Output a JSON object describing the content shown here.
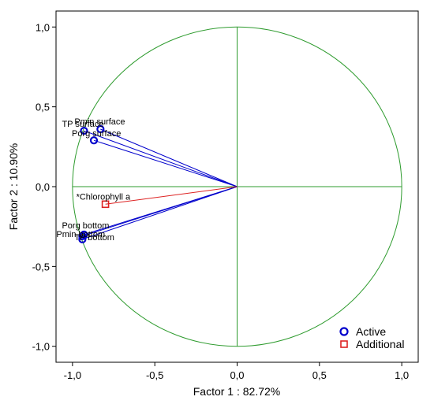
{
  "chart_data": {
    "type": "scatter",
    "title": "",
    "xlabel": "Factor 1 : 82.72%",
    "ylabel": "Factor 2 : 10.90%",
    "xlim": [
      -1.1,
      1.1
    ],
    "ylim": [
      -1.1,
      1.1
    ],
    "xticks": [
      "-1,0",
      "-0,5",
      "0,0",
      "0,5",
      "1,0"
    ],
    "yticks": [
      "1,0",
      "0,5",
      "0,0",
      "-0,5",
      "-1,0"
    ],
    "xtick_values": [
      -1.0,
      -0.5,
      0.0,
      0.5,
      1.0
    ],
    "ytick_values": [
      1.0,
      0.5,
      0.0,
      -0.5,
      -1.0
    ],
    "unit_circle": true,
    "grid": false,
    "legend_position": "bottom-right",
    "colors": {
      "active": "#0000cc",
      "additional": "#dd2222",
      "circle": "#2e9b2e",
      "axis_lines": "#2e9b2e"
    },
    "series": [
      {
        "name": "Active",
        "marker": "circle",
        "points": [
          {
            "label": "Pmin surface",
            "x": -0.83,
            "y": 0.36
          },
          {
            "label": "TP surface",
            "x": -0.93,
            "y": 0.35
          },
          {
            "label": "Porg surface",
            "x": -0.87,
            "y": 0.29
          },
          {
            "label": "Porg bottom",
            "x": -0.93,
            "y": -0.3
          },
          {
            "label": "Pmin bottom",
            "x": -0.94,
            "y": -0.31
          },
          {
            "label": "TP bottom",
            "x": -0.94,
            "y": -0.33
          }
        ]
      },
      {
        "name": "Additional",
        "marker": "square",
        "points": [
          {
            "label": "*Chlorophyll a",
            "x": -0.8,
            "y": -0.11
          }
        ]
      }
    ]
  }
}
